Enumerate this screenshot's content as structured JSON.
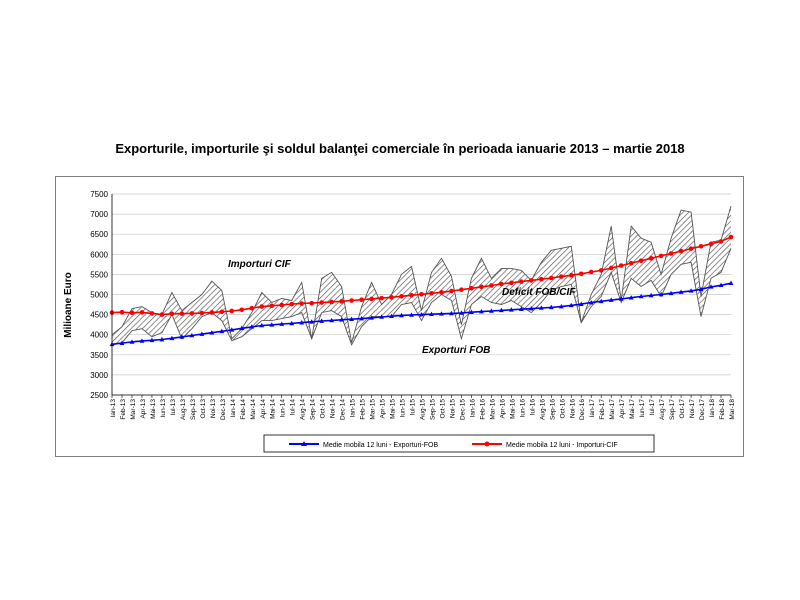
{
  "chart_data": {
    "type": "line",
    "title": "Exporturile, importurile şi soldul balanţei comerciale în perioada ianuarie 2013 – martie 2018",
    "xlabel": "",
    "ylabel": "Milioane Euro",
    "ylim": [
      2500,
      7500
    ],
    "yticks": [
      2500,
      3000,
      3500,
      4000,
      4500,
      5000,
      5500,
      6000,
      6500,
      7000,
      7500
    ],
    "grid": "horizontal",
    "legend_position": "bottom",
    "categories": [
      "Ian-13",
      "Feb-13",
      "Mar-13",
      "Apr-13",
      "Mai-13",
      "Iun-13",
      "Iul-13",
      "Aug-13",
      "Sep-13",
      "Oct-13",
      "Noi-13",
      "Dec-13",
      "Ian-14",
      "Feb-14",
      "Mar-14",
      "Apr-14",
      "Mai-14",
      "Iun-14",
      "Iul-14",
      "Aug-14",
      "Sep-14",
      "Oct-14",
      "Noi-14",
      "Dec-14",
      "Ian-15",
      "Feb-15",
      "Mar-15",
      "Apr-15",
      "Mai-15",
      "Iun-15",
      "Iul-15",
      "Aug-15",
      "Sep-15",
      "Oct-15",
      "Noi-15",
      "Dec-15",
      "Ian-16",
      "Feb-16",
      "Mar-16",
      "Apr-16",
      "Mai-16",
      "Iun-16",
      "Iul-16",
      "Aug-16",
      "Sep-16",
      "Oct-16",
      "Noi-16",
      "Dec-16",
      "Ian-17",
      "Feb-17",
      "Mar-17",
      "Apr-17",
      "Mai-17",
      "Iun-17",
      "Iul-17",
      "Aug-17",
      "Sep-17",
      "Oct-17",
      "Noi-17",
      "Dec-17",
      "Ian-18",
      "Feb-18",
      "Mar-18"
    ],
    "series": [
      {
        "name": "Importuri CIF",
        "style": "thin-gray",
        "values": [
          4000,
          4200,
          4650,
          4700,
          4550,
          4500,
          5050,
          4600,
          4800,
          5000,
          5330,
          5100,
          3900,
          4150,
          4550,
          5050,
          4800,
          4900,
          4850,
          5300,
          3900,
          5400,
          5550,
          5200,
          3800,
          4700,
          5300,
          4750,
          5000,
          5500,
          5700,
          4600,
          5550,
          5900,
          5450,
          4250,
          5400,
          5900,
          5400,
          5650,
          5650,
          5600,
          5350,
          5800,
          6100,
          6150,
          6200,
          4300,
          5000,
          5500,
          6700,
          4850,
          6700,
          6400,
          6300,
          5500,
          6400,
          7100,
          7050,
          4950,
          6300,
          6350,
          7200
        ]
      },
      {
        "name": "Exporturi FOB",
        "style": "thin-gray",
        "values": [
          3750,
          3800,
          4100,
          4150,
          3950,
          4050,
          4500,
          3900,
          4150,
          4450,
          4550,
          4350,
          3850,
          3950,
          4150,
          4350,
          4350,
          4400,
          4450,
          4550,
          3900,
          4550,
          4600,
          4450,
          3750,
          4200,
          4450,
          4450,
          4450,
          4750,
          4800,
          4350,
          4800,
          5000,
          4850,
          3900,
          4750,
          4950,
          4800,
          4750,
          4850,
          4700,
          4550,
          4800,
          5100,
          5200,
          5250,
          4300,
          4700,
          4950,
          5550,
          4800,
          5400,
          5200,
          5350,
          4950,
          5500,
          5750,
          5800,
          4450,
          5400,
          5550,
          6150
        ]
      },
      {
        "name": "Medie mobila 12 luni - Exporturi-FOB",
        "color": "#0000ff",
        "values": [
          3760,
          3790,
          3820,
          3845,
          3860,
          3880,
          3910,
          3945,
          3980,
          4015,
          4050,
          4085,
          4120,
          4160,
          4195,
          4230,
          4245,
          4265,
          4280,
          4300,
          4320,
          4340,
          4355,
          4370,
          4385,
          4400,
          4420,
          4440,
          4460,
          4480,
          4490,
          4500,
          4510,
          4520,
          4530,
          4540,
          4560,
          4575,
          4590,
          4605,
          4620,
          4635,
          4650,
          4665,
          4680,
          4700,
          4730,
          4760,
          4800,
          4830,
          4860,
          4890,
          4920,
          4950,
          4975,
          5000,
          5030,
          5060,
          5090,
          5130,
          5190,
          5230,
          5280
        ]
      },
      {
        "name": "Medie mobila 12 luni - Importuri-CIF",
        "color": "#ff0000",
        "values": [
          4550,
          4560,
          4545,
          4555,
          4530,
          4500,
          4520,
          4525,
          4530,
          4540,
          4555,
          4570,
          4590,
          4620,
          4660,
          4700,
          4720,
          4740,
          4760,
          4775,
          4785,
          4800,
          4815,
          4830,
          4850,
          4870,
          4890,
          4910,
          4930,
          4955,
          4980,
          5005,
          5030,
          5055,
          5085,
          5120,
          5155,
          5190,
          5225,
          5260,
          5290,
          5320,
          5350,
          5380,
          5410,
          5445,
          5480,
          5515,
          5560,
          5600,
          5660,
          5720,
          5780,
          5840,
          5900,
          5960,
          6020,
          6080,
          6140,
          6200,
          6260,
          6320,
          6430
        ]
      }
    ],
    "annotations": [
      "Importuri CIF",
      "Deficit FOB/CIF",
      "Exporturi FOB"
    ],
    "shaded_area": {
      "between": [
        "Importuri CIF",
        "Exporturi FOB"
      ],
      "label": "Deficit FOB/CIF",
      "pattern": "diagonal hatch"
    },
    "legend": [
      "Medie mobila 12 luni - Exporturi-FOB",
      "Medie mobila 12 luni - Importuri-CIF"
    ]
  }
}
